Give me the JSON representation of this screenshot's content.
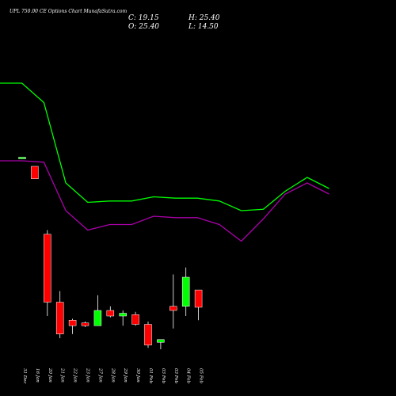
{
  "chart_data": {
    "type": "candlestick",
    "title": "UPL 750.00 CE Options Chart MunafaSutra.com",
    "ohlc_readout": {
      "C": "C: 19.15",
      "H": "H: 25.40",
      "O": "O: 25.40",
      "L": "L: 14.50"
    },
    "categories": [
      "31 Dec",
      "16 Jan",
      "20 Jan",
      "21 Jan",
      "22 Jan",
      "23 Jan",
      "27 Jan",
      "28 Jan",
      "29 Jan",
      "30 Jan",
      "01 Feb",
      "03 Feb",
      "03 Feb",
      "04 Feb",
      "05 Feb"
    ],
    "candles": [
      {
        "date": "31 Dec",
        "open": 73.0,
        "high": 73.0,
        "low": 73.0,
        "close": 73.0,
        "color": "#00ff00"
      },
      {
        "date": "16 Jan",
        "open": 70.0,
        "high": 70.0,
        "low": 65.5,
        "close": 65.5,
        "color": "#ff0000"
      },
      {
        "date": "20 Jan",
        "open": 45.5,
        "high": 47.0,
        "low": 16.0,
        "close": 21.0,
        "color": "#ff0000"
      },
      {
        "date": "21 Jan",
        "open": 21.0,
        "high": 25.0,
        "low": 8.0,
        "close": 9.5,
        "color": "#ff0000"
      },
      {
        "date": "22 Jan",
        "open": 14.5,
        "high": 15.0,
        "low": 9.5,
        "close": 12.5,
        "color": "#ff0000"
      },
      {
        "date": "23 Jan",
        "open": 13.5,
        "high": 14.0,
        "low": 12.0,
        "close": 12.5,
        "color": "#ff0000"
      },
      {
        "date": "27 Jan",
        "open": 12.5,
        "high": 23.5,
        "low": 12.5,
        "close": 18.0,
        "color": "#00ff00"
      },
      {
        "date": "28 Jan",
        "open": 18.0,
        "high": 19.5,
        "low": 15.5,
        "close": 16.0,
        "color": "#ff0000"
      },
      {
        "date": "29 Jan",
        "open": 16.0,
        "high": 18.0,
        "low": 12.5,
        "close": 17.0,
        "color": "#00ff00"
      },
      {
        "date": "30 Jan",
        "open": 16.5,
        "high": 17.5,
        "low": 12.5,
        "close": 13.0,
        "color": "#ff0000"
      },
      {
        "date": "01 Feb",
        "open": 13.0,
        "high": 14.0,
        "low": 4.5,
        "close": 5.5,
        "color": "#ff0000"
      },
      {
        "date": "03 Feb",
        "open": 6.5,
        "high": 7.5,
        "low": 4.0,
        "close": 7.5,
        "color": "#00ff00"
      },
      {
        "date": "03 Feb",
        "open": 18.0,
        "high": 31.0,
        "low": 11.5,
        "close": 19.5,
        "color": "#ff0000"
      },
      {
        "date": "04 Feb",
        "open": 19.5,
        "high": 33.5,
        "low": 16.0,
        "close": 30.0,
        "color": "#00ff00"
      },
      {
        "date": "05 Feb",
        "open": 25.4,
        "high": 25.4,
        "low": 14.5,
        "close": 19.15,
        "color": "#ff0000"
      }
    ],
    "overlay_lines": [
      {
        "color": "#00ff00",
        "values": [
          100,
          100,
          93,
          64,
          57,
          57.5,
          57.5,
          59,
          58.5,
          58.5,
          57.5,
          54,
          54.5,
          61,
          66,
          62
        ]
      },
      {
        "color": "#aa00aa",
        "values": [
          72,
          72,
          71.5,
          54,
          47,
          49,
          49,
          52,
          51.5,
          51.5,
          49,
          43,
          51,
          60,
          64,
          60
        ]
      }
    ],
    "overlay_x": [
      0,
      1,
      2,
      3,
      4,
      5,
      6,
      7,
      8,
      9,
      10,
      11,
      12,
      13,
      14,
      15
    ],
    "ylim": [
      0,
      110
    ],
    "grid": false,
    "legend": "none"
  }
}
